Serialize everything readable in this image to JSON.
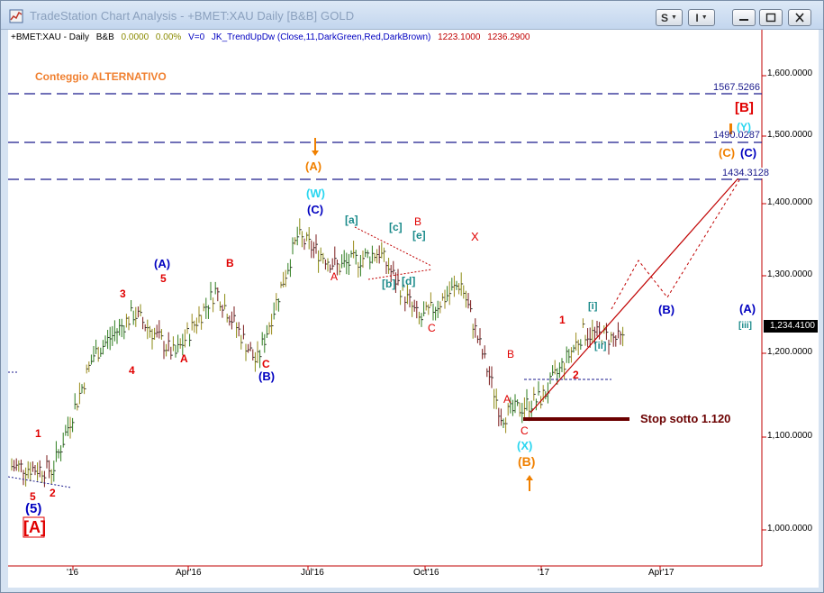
{
  "window": {
    "title": "TradeStation Chart Analysis - +BMET:XAU Daily [B&B] GOLD"
  },
  "toolbar": {
    "symbol_menu": "S",
    "indicator_menu": "I"
  },
  "status_line": {
    "symbol": "+BMET:XAU - Daily",
    "bb": "B&B",
    "change": "0.0000",
    "pct": "0.00%",
    "volume": "V=0",
    "indicator": "JK_TrendUpDw (Close,11,DarkGreen,Red,DarkBrown)",
    "value1": "1223.1000",
    "value2": "1236.2900"
  },
  "annotations": {
    "count_title": "Conteggio ALTERNATIVO",
    "stop_text": "Stop sotto 1.120",
    "levels": [
      "1567.5266",
      "1490.0287",
      "1434.3128"
    ],
    "last_price": "1,234.4100"
  },
  "chart_data": {
    "type": "line",
    "title": "",
    "y_ticks": [
      "1,600.0000",
      "1,500.0000",
      "1,400.0000",
      "1,300.0000",
      "1,200.0000",
      "1,100.0000",
      "1,000.0000"
    ],
    "x_ticks": [
      "'16",
      "Apr'16",
      "Jul'16",
      "Oct'16",
      "'17",
      "Apr'17"
    ],
    "ylim": [
      940,
      1640
    ],
    "price_path": [
      [
        "Dec'15",
        1070
      ],
      [
        "Jan'16",
        1065
      ],
      [
        "Feb'16",
        1215
      ],
      [
        "Mar'16",
        1270
      ],
      [
        "Mar'16",
        1215
      ],
      [
        "May'16",
        1300
      ],
      [
        "Jun'16",
        1205
      ],
      [
        "Jul'16",
        1370
      ],
      [
        "Aug'16",
        1330
      ],
      [
        "Sep'16",
        1350
      ],
      [
        "Oct'16",
        1260
      ],
      [
        "Nov'16",
        1310
      ],
      [
        "Dec'16",
        1135
      ],
      [
        "Jan'17",
        1160
      ],
      [
        "Feb'17",
        1245
      ],
      [
        "Mar'17",
        1234
      ]
    ],
    "wave_labels": [
      "1",
      "5",
      "2",
      "(5)",
      "[A]",
      "3",
      "4",
      "5",
      "(A)",
      "A",
      "B",
      "C",
      "(B)",
      "(C)",
      "(W)",
      "(A)",
      "[a]",
      "[b]",
      "[c]",
      "[d]",
      "[e]",
      "B",
      "A",
      "C",
      "X",
      "B",
      "A",
      "C",
      "(X)",
      "(B)",
      "1",
      "2",
      "[i]",
      "[ii]",
      "(B)",
      "(A)",
      "[iii]",
      "[B]",
      "(Y)",
      "(C)",
      "(C)"
    ]
  }
}
